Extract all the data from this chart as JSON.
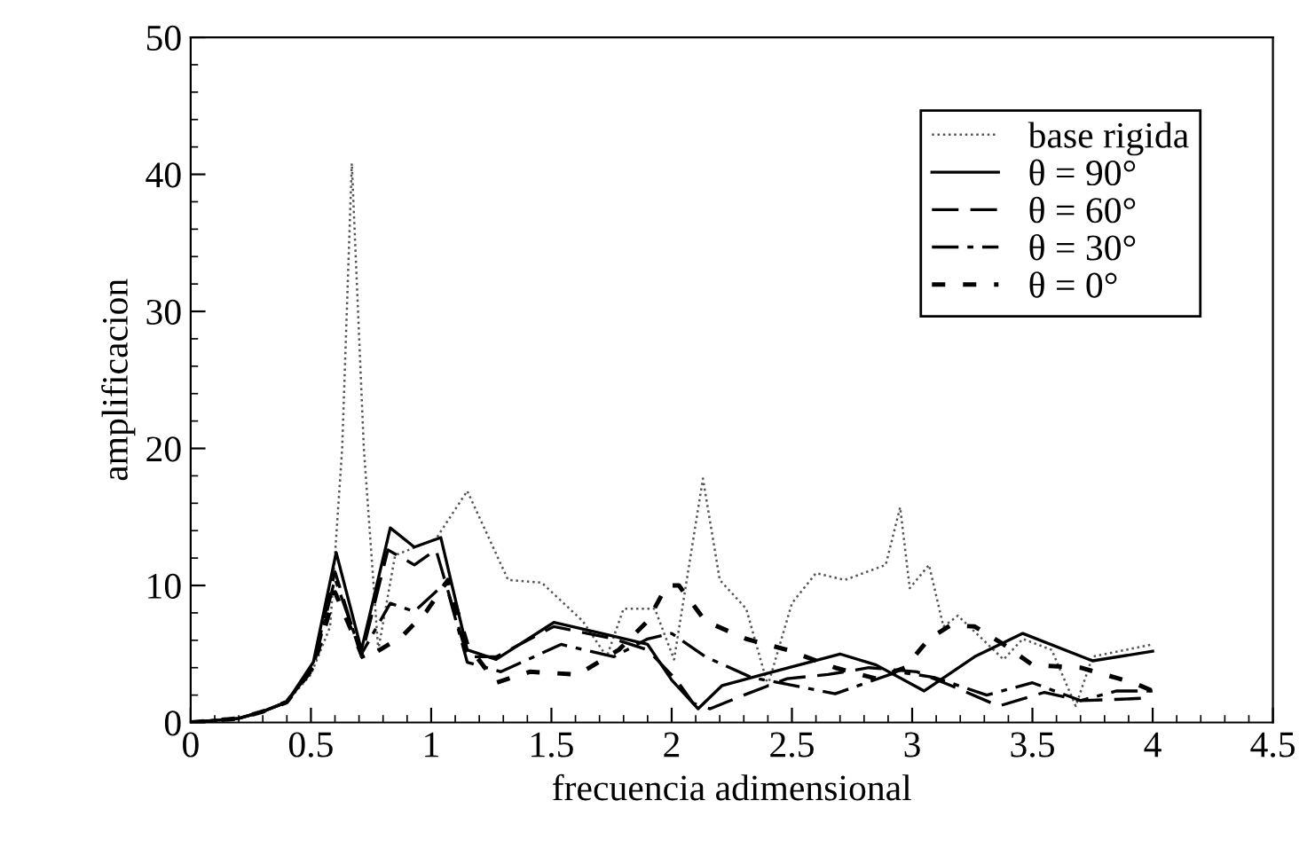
{
  "chart_data": {
    "type": "line",
    "xlabel": "frecuencia adimensional",
    "ylabel": "amplificacion",
    "xlim": [
      0,
      4.5
    ],
    "ylim": [
      0,
      50
    ],
    "xticks": [
      0,
      {
        "value": 0.5,
        "label": "0.5"
      },
      1,
      {
        "value": 1.5,
        "label": "1.5"
      },
      2,
      {
        "value": 2.5,
        "label": "2.5"
      },
      3,
      {
        "value": 3.5,
        "label": "3.5"
      },
      4,
      {
        "value": 4.5,
        "label": "4.5"
      }
    ],
    "yticks": [
      0,
      10,
      20,
      30,
      40,
      50
    ],
    "grid": false,
    "legend": "top right",
    "series": [
      {
        "name": "base rigida",
        "color": "#555555",
        "line_style": "dotted",
        "x": [
          0,
          0.2,
          0.3,
          0.4,
          0.5,
          0.58,
          0.63,
          0.67,
          0.72,
          0.78,
          0.85,
          1.02,
          1.15,
          1.32,
          1.46,
          1.63,
          1.73,
          1.8,
          1.93,
          2.01,
          2.13,
          2.2,
          2.31,
          2.4,
          2.5,
          2.6,
          2.72,
          2.89,
          2.95,
          2.99,
          3.07,
          3.13,
          3.19,
          3.38,
          3.46,
          3.58,
          3.68,
          3.75,
          4.0
        ],
        "values": [
          0,
          0.3,
          0.8,
          1.5,
          3.5,
          7,
          20,
          40.8,
          20,
          5.3,
          12.2,
          13.4,
          16.9,
          10.4,
          10.2,
          7.4,
          4.8,
          8.3,
          8.3,
          4.6,
          17.8,
          10.4,
          8.3,
          2.7,
          8.7,
          10.9,
          10.4,
          11.5,
          15.7,
          9.8,
          11.5,
          7,
          7.8,
          4.6,
          6.1,
          5.3,
          1.2,
          4.8,
          5.7
        ]
      },
      {
        "name": "θ = 90°",
        "color": "#000000",
        "line_style": "solid",
        "x": [
          0,
          0.2,
          0.3,
          0.4,
          0.51,
          0.605,
          0.71,
          0.83,
          0.93,
          1.04,
          1.15,
          1.27,
          1.51,
          1.71,
          1.9,
          2.0,
          2.11,
          2.21,
          2.38,
          2.7,
          2.85,
          3.05,
          3.26,
          3.46,
          3.75,
          4.0
        ],
        "values": [
          0,
          0.3,
          0.8,
          1.5,
          4.4,
          12.4,
          5.3,
          14.2,
          12.8,
          13.5,
          5.3,
          4.6,
          7.3,
          6.5,
          5.7,
          3.1,
          1,
          2.7,
          3.5,
          5,
          4.2,
          2.3,
          4.8,
          6.5,
          4.5,
          5.2
        ]
      },
      {
        "name": "θ = 60°",
        "color": "#000000",
        "line_style": "dashed",
        "x": [
          0,
          0.2,
          0.3,
          0.4,
          0.51,
          0.6,
          0.71,
          0.82,
          0.93,
          1.02,
          1.15,
          1.27,
          1.51,
          1.76,
          1.9,
          2.02,
          2.09,
          2.16,
          2.3,
          2.48,
          2.65,
          2.82,
          3.02,
          3.16,
          3.36,
          3.55,
          3.7,
          3.87,
          4.0
        ],
        "values": [
          0,
          0.3,
          0.8,
          1.5,
          4.2,
          11,
          4.8,
          12.6,
          11.5,
          12.6,
          4.8,
          4.8,
          7,
          6.1,
          5.3,
          3.1,
          1.4,
          1,
          2,
          3.2,
          3.5,
          4,
          3.7,
          2.7,
          1.2,
          2.2,
          1.6,
          1.7,
          1.8
        ]
      },
      {
        "name": "θ = 30°",
        "color": "#000000",
        "line_style": "dashdot",
        "x": [
          0,
          0.2,
          0.3,
          0.4,
          0.51,
          0.6,
          0.71,
          0.83,
          0.93,
          1.06,
          1.15,
          1.29,
          1.54,
          1.76,
          1.9,
          2.0,
          2.14,
          2.33,
          2.68,
          2.94,
          3.09,
          3.31,
          3.5,
          3.7,
          3.85,
          4.0
        ],
        "values": [
          0,
          0.3,
          0.8,
          1.5,
          4,
          10.5,
          5,
          8.7,
          8.1,
          10.2,
          4.4,
          3.7,
          5.7,
          4.8,
          6.1,
          6.5,
          4.8,
          3.3,
          2.1,
          3.7,
          3.3,
          2,
          2.9,
          1.6,
          2.3,
          2.3
        ]
      },
      {
        "name": "θ = 0°",
        "color": "#000000",
        "line_style": "dotted_dense",
        "x": [
          0,
          0.2,
          0.3,
          0.4,
          0.51,
          0.6,
          0.72,
          0.88,
          0.98,
          1.07,
          1.15,
          1.27,
          1.41,
          1.61,
          1.78,
          1.9,
          1.98,
          2.03,
          2.14,
          2.31,
          2.48,
          2.68,
          2.85,
          2.97,
          3.07,
          3.16,
          3.26,
          3.38,
          3.5,
          3.7,
          3.92,
          4.0
        ],
        "values": [
          0,
          0.3,
          0.8,
          1.5,
          4,
          9.5,
          4.6,
          6.3,
          8.1,
          10.4,
          5.7,
          2.9,
          3.7,
          3.5,
          5.3,
          7.4,
          10,
          10,
          7.4,
          6.1,
          5.3,
          4,
          3.2,
          4,
          6.1,
          7.1,
          7,
          5.7,
          4.2,
          4,
          2.9,
          2.3
        ]
      }
    ]
  }
}
